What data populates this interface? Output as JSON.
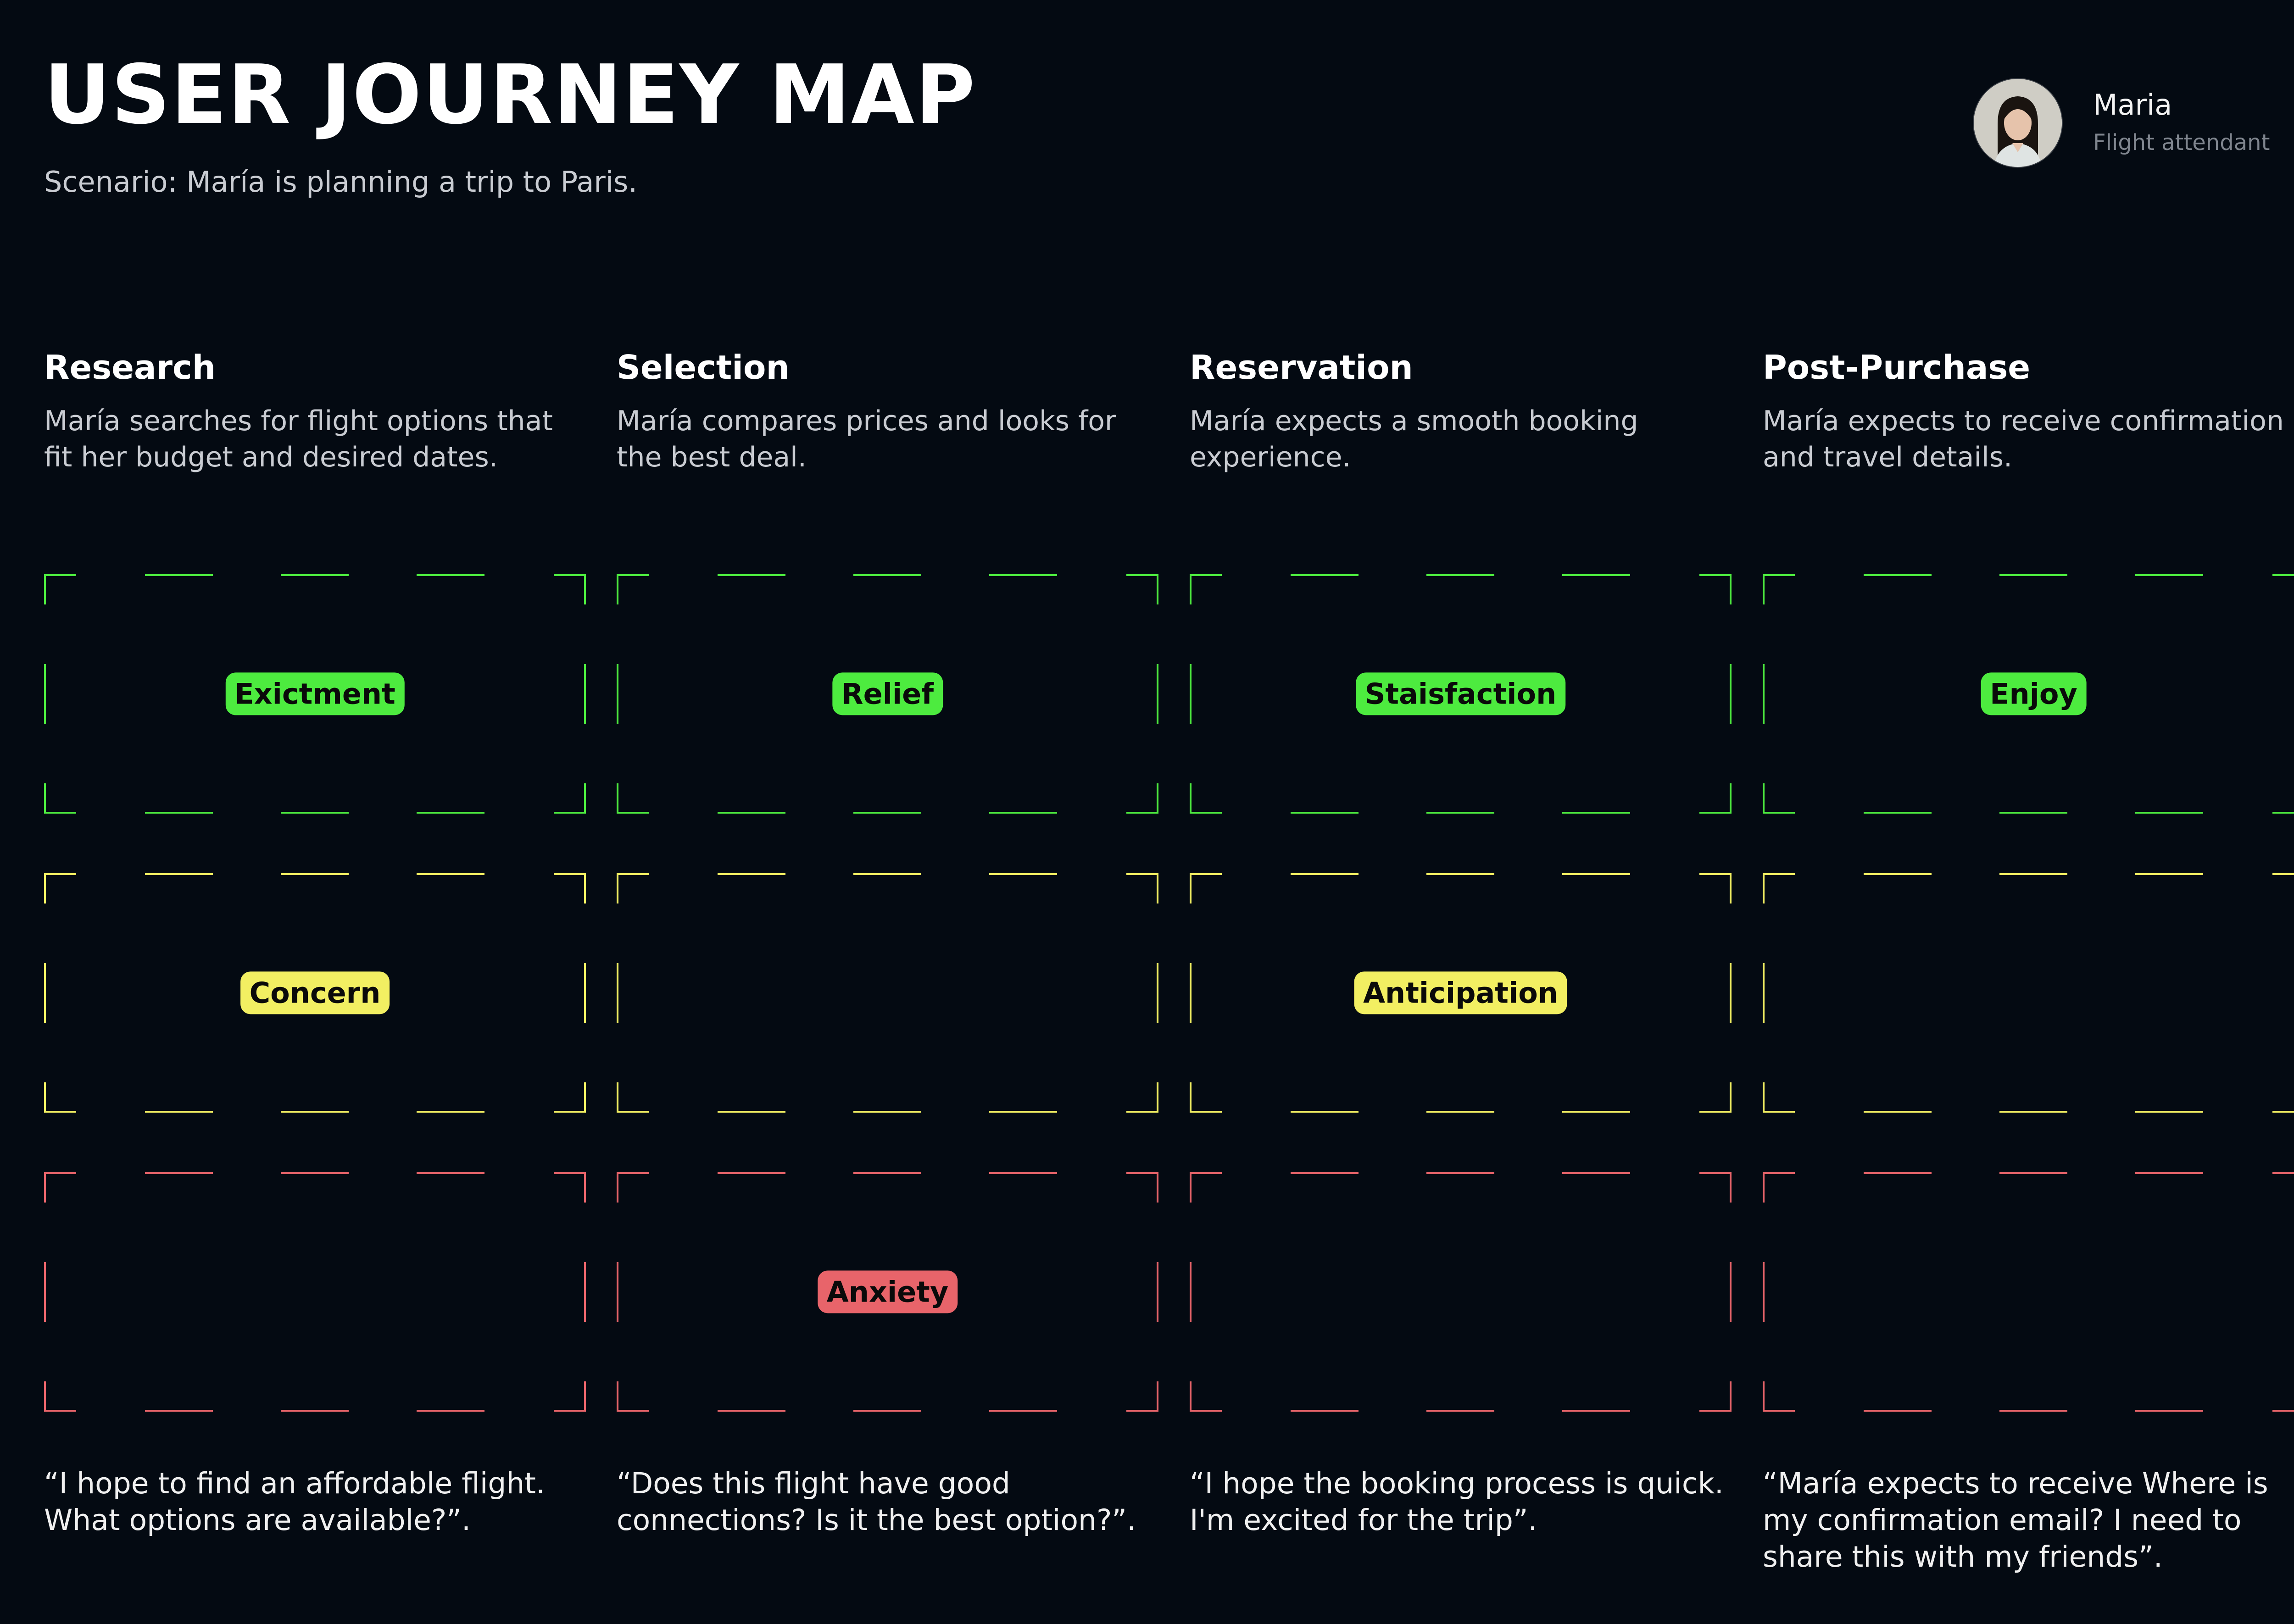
{
  "title": "USER JOURNEY MAP",
  "scenario": "Scenario: María is planning a trip to Paris.",
  "persona": {
    "name": "Maria",
    "role": "Flight attendant",
    "avatar_icon": "person-avatar-icon"
  },
  "colors": {
    "positive": "#4deb3f",
    "neutral": "#f2ef62",
    "negative": "#e8646a"
  },
  "stages": [
    {
      "title": "Research",
      "description": "María searches for flight options that fit her budget and desired dates.",
      "quote": "“I hope to find an affordable flight. What options are available?”."
    },
    {
      "title": "Selection",
      "description": "María compares prices and looks for the best deal.",
      "quote": "“Does this flight have good connections? Is it the best option?”."
    },
    {
      "title": "Reservation",
      "description": "María expects a smooth booking experience.",
      "quote": "“I hope the booking process is quick. I'm excited for the trip”."
    },
    {
      "title": "Post-Purchase",
      "description": "María expects to receive confirmation and travel details.",
      "quote": "“María expects to receive Where is my confirmation email? I need to share this with my friends”."
    }
  ],
  "emotions": {
    "positive": [
      "Exictment",
      "Relief",
      "Staisfaction",
      "Enjoy"
    ],
    "neutral": [
      "Concern",
      "",
      "Anticipation",
      ""
    ],
    "negative": [
      "",
      "Anxiety",
      "",
      ""
    ]
  }
}
